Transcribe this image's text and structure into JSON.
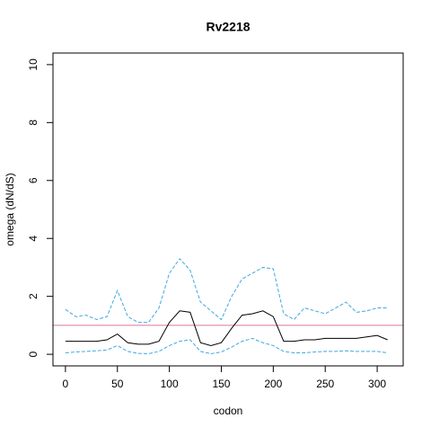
{
  "chart_data": {
    "type": "line",
    "title": "Rv2218",
    "xlabel": "codon",
    "ylabel": "omega (dN/dS)",
    "x": [
      0,
      10,
      20,
      30,
      40,
      50,
      60,
      70,
      80,
      90,
      100,
      110,
      120,
      130,
      140,
      150,
      160,
      170,
      180,
      190,
      200,
      210,
      220,
      230,
      240,
      250,
      260,
      270,
      280,
      290,
      300,
      310
    ],
    "series": [
      {
        "color": "#000000",
        "dashed": false,
        "values": [
          0.45,
          0.45,
          0.45,
          0.45,
          0.5,
          0.7,
          0.4,
          0.35,
          0.35,
          0.45,
          1.1,
          1.5,
          1.45,
          0.4,
          0.3,
          0.4,
          0.9,
          1.35,
          1.4,
          1.5,
          1.3,
          0.45,
          0.45,
          0.5,
          0.5,
          0.55,
          0.55,
          0.55,
          0.55,
          0.6,
          0.65,
          0.5
        ]
      },
      {
        "color": "#3fa9e0",
        "dashed": true,
        "values": [
          1.55,
          1.3,
          1.35,
          1.2,
          1.3,
          2.2,
          1.3,
          1.1,
          1.1,
          1.6,
          2.8,
          3.3,
          2.9,
          1.8,
          1.5,
          1.2,
          2.0,
          2.6,
          2.8,
          3.0,
          2.95,
          1.4,
          1.2,
          1.6,
          1.5,
          1.4,
          1.6,
          1.8,
          1.45,
          1.5,
          1.6,
          1.6
        ]
      },
      {
        "color": "#3fa9e0",
        "dashed": true,
        "values": [
          0.05,
          0.08,
          0.1,
          0.12,
          0.15,
          0.3,
          0.1,
          0.03,
          0.02,
          0.1,
          0.3,
          0.45,
          0.5,
          0.1,
          0.02,
          0.08,
          0.25,
          0.45,
          0.55,
          0.4,
          0.3,
          0.1,
          0.05,
          0.05,
          0.08,
          0.1,
          0.1,
          0.12,
          0.1,
          0.1,
          0.1,
          0.05
        ]
      }
    ],
    "hline": {
      "value": 1,
      "color": "#d9789c"
    },
    "xlim": [
      -12,
      325
    ],
    "ylim": [
      -0.4,
      10.4
    ],
    "xticks": [
      0,
      50,
      100,
      150,
      200,
      250,
      300
    ],
    "yticks": [
      0,
      2,
      4,
      6,
      8,
      10
    ]
  }
}
